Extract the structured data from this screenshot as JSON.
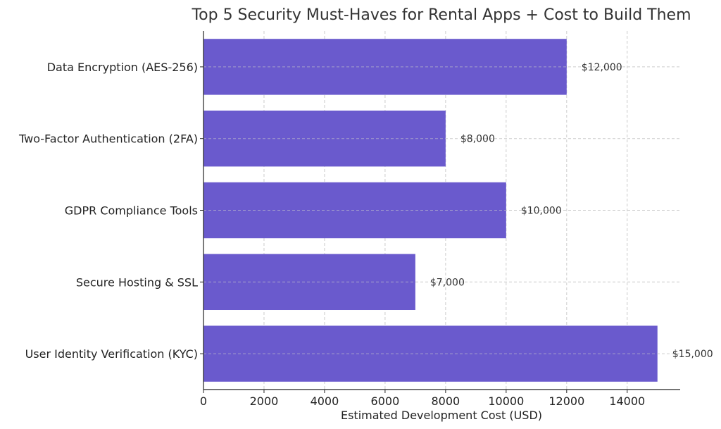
{
  "chart_data": {
    "type": "bar",
    "orientation": "horizontal",
    "title": "Top 5 Security Must-Haves for Rental Apps + Cost to Build Them",
    "xlabel": "Estimated Development Cost (USD)",
    "ylabel": "",
    "categories": [
      "Data Encryption (AES-256)",
      "Two-Factor Authentication (2FA)",
      "GDPR Compliance Tools",
      "Secure Hosting & SSL",
      "User Identity Verification (KYC)"
    ],
    "values": [
      12000,
      8000,
      10000,
      7000,
      15000
    ],
    "value_labels": [
      "$12,000",
      "$8,000",
      "$10,000",
      "$7,000",
      "$15,000"
    ],
    "xlim": [
      0,
      15750
    ],
    "xticks": [
      0,
      2000,
      4000,
      6000,
      8000,
      10000,
      12000,
      14000
    ],
    "xtick_labels": [
      "0",
      "2000",
      "4000",
      "6000",
      "8000",
      "10000",
      "12000",
      "14000"
    ],
    "grid": true,
    "bar_color": "#6a5acd"
  }
}
